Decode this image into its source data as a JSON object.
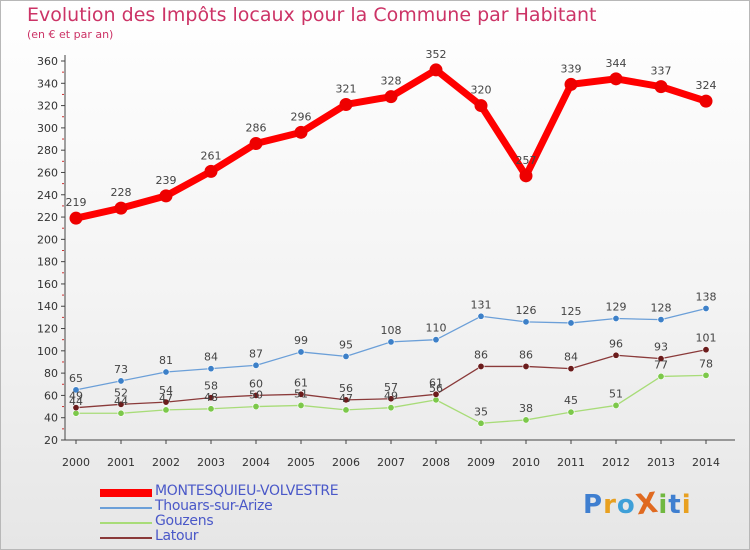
{
  "chart_data": {
    "type": "line",
    "title": "Evolution des Impôts locaux pour la Commune par Habitant",
    "subtitle": "(en € et par an)",
    "x": [
      "2000",
      "2001",
      "2002",
      "2003",
      "2004",
      "2005",
      "2006",
      "2007",
      "2008",
      "2009",
      "2010",
      "2011",
      "2012",
      "2013",
      "2014"
    ],
    "ylim": [
      20,
      360
    ],
    "yticks": [
      20,
      40,
      60,
      80,
      100,
      120,
      140,
      160,
      180,
      200,
      220,
      240,
      260,
      280,
      300,
      320,
      340,
      360
    ],
    "grid": false,
    "legend_position": "bottom-left",
    "series": [
      {
        "name": "MONTESQUIEU-VOLVESTRE",
        "color": "#ff0000",
        "marker": "#ee0000",
        "values": [
          219,
          228,
          239,
          261,
          286,
          296,
          321,
          328,
          352,
          320,
          257,
          339,
          344,
          337,
          324
        ],
        "labels": [
          "219",
          "228",
          "239",
          "261",
          "286",
          "296",
          "321",
          "328",
          "352",
          "320",
          "257",
          "339",
          "344",
          "337",
          "324"
        ]
      },
      {
        "name": "Thouars-sur-Arize",
        "color": "#6b9fd8",
        "marker": "#3d80c8",
        "values": [
          65,
          73,
          81,
          84,
          87,
          99,
          95,
          108,
          110,
          131,
          126,
          125,
          129,
          128,
          138
        ],
        "labels": [
          "65",
          "73",
          "81",
          "84",
          "87",
          "99",
          "95",
          "108",
          "110",
          "131",
          "126",
          "125",
          "129",
          "128",
          "138"
        ]
      },
      {
        "name": "Gouzens",
        "color": "#a8dc78",
        "marker": "#7cc84a",
        "values": [
          44,
          44,
          47,
          48,
          50,
          51,
          47,
          49,
          56,
          35,
          38,
          45,
          51,
          77,
          78
        ],
        "labels": [
          "44",
          "44",
          "47",
          "48",
          "50",
          "51",
          "47",
          "49",
          "56",
          "35",
          "38",
          "45",
          "51",
          "77",
          "78"
        ]
      },
      {
        "name": "Latour",
        "color": "#8a3a3a",
        "marker": "#6b1c1c",
        "values": [
          49,
          52,
          54,
          58,
          60,
          61,
          56,
          57,
          61,
          86,
          86,
          84,
          96,
          93,
          101
        ],
        "labels": [
          "49",
          "52",
          "54",
          "58",
          "60",
          "61",
          "56",
          "57",
          "61",
          "86",
          "86",
          "84",
          "96",
          "93",
          "101"
        ]
      }
    ]
  },
  "logo": {
    "text": "ProXiti",
    "letters": [
      "P",
      "r",
      "o",
      "X",
      "i",
      "t",
      "i"
    ],
    "colors": [
      "#3f7fd0",
      "#e8a020",
      "#3fa0d8",
      "#e06a20",
      "#70b840",
      "#3f7fd0",
      "#e8a020"
    ]
  }
}
